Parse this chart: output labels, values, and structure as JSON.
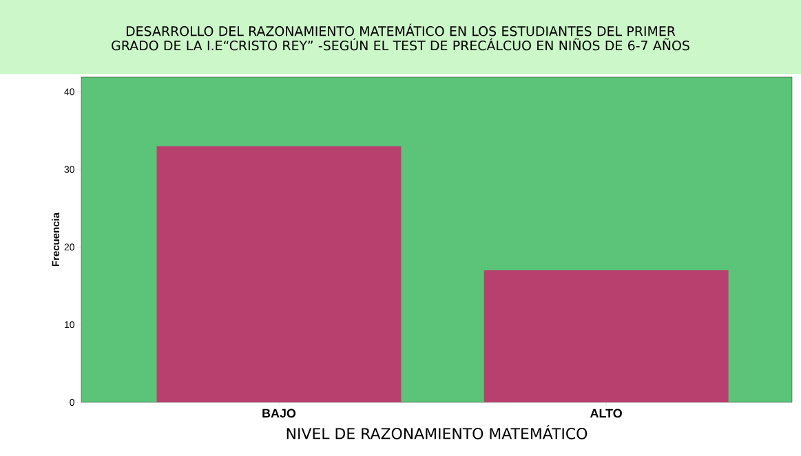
{
  "chart_data": {
    "type": "bar",
    "title": "DESARROLLO DEL  RAZONAMIENTO MATEMÁTICO EN LOS ESTUDIANTES DEL PRIMER GRADO  DE LA I.E“CRISTO REY” -SEGÚN EL TEST DE PRECÁLCUO EN NIÑOS DE 6-7 AÑOS",
    "xlabel": "NIVEL DE RAZONAMIENTO MATEMÁTICO",
    "ylabel": "Frecuencia",
    "categories": [
      "BAJO",
      "ALTO"
    ],
    "values": [
      33,
      17
    ],
    "color": "#b8406e",
    "ylim": [
      0,
      41.9
    ],
    "yticks": [
      0,
      10,
      20,
      30,
      40
    ]
  }
}
